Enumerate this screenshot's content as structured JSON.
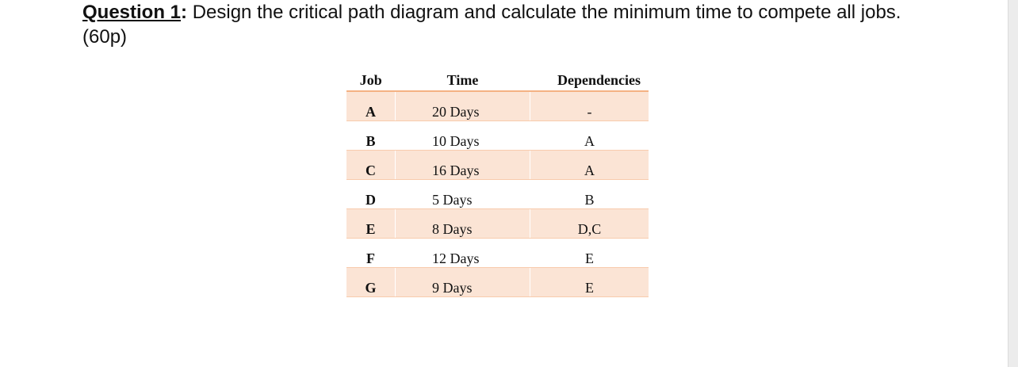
{
  "question": {
    "label": "Question 1",
    "separator": ":",
    "text": " Design the critical path diagram and calculate the minimum time to compete all jobs. (60p)"
  },
  "table": {
    "header": [
      "Job",
      "Time",
      "Dependencies"
    ],
    "rows": [
      [
        "A",
        "20 Days",
        "-"
      ],
      [
        "B",
        "10 Days",
        "A"
      ],
      [
        "C",
        "16 Days",
        "A"
      ],
      [
        "D",
        "5 Days",
        "B"
      ],
      [
        "E",
        "8 Days",
        "D,C"
      ],
      [
        "F",
        "12 Days",
        "E"
      ],
      [
        "G",
        "9 Days",
        "E"
      ]
    ]
  }
}
